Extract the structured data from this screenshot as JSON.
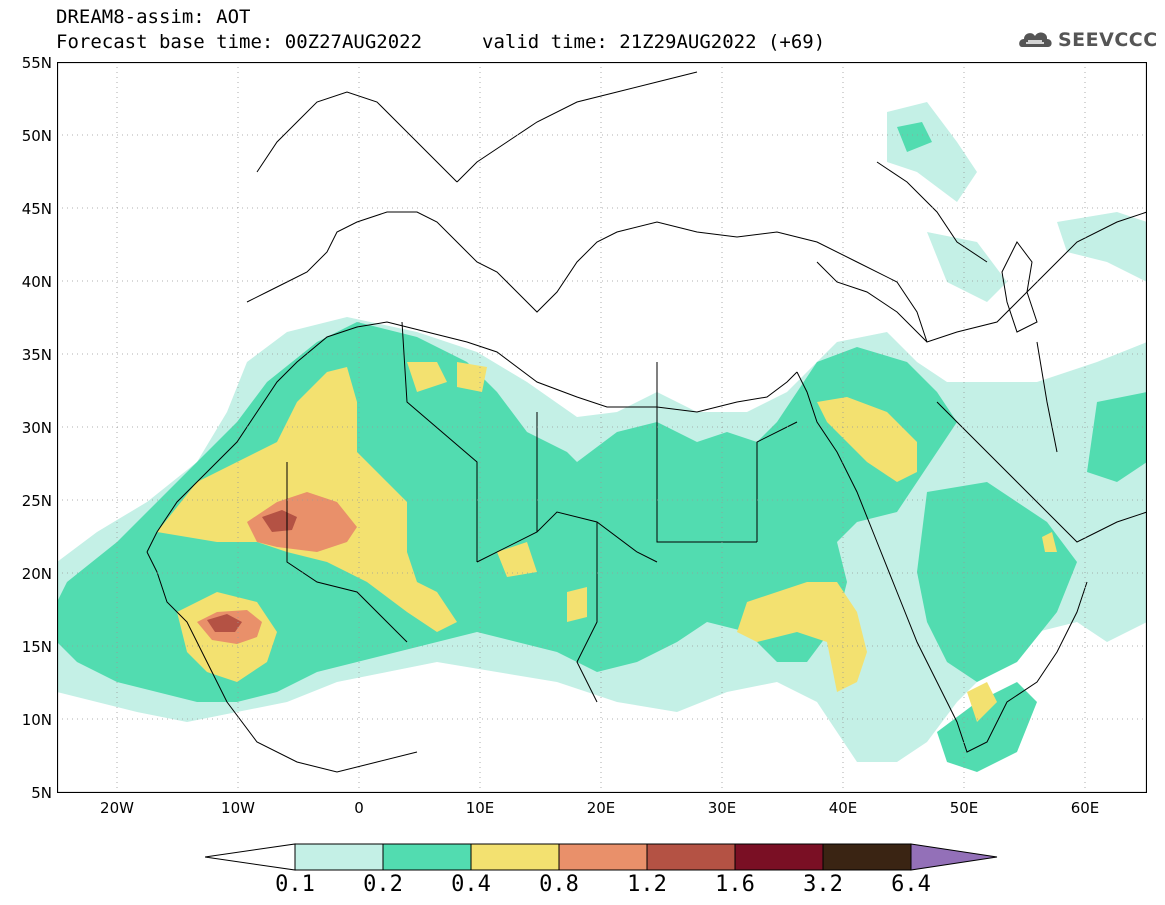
{
  "header": {
    "title": "DREAM8-assim: AOT",
    "base_time": "Forecast base time: 00Z27AUG2022",
    "valid_time": "valid time: 21Z29AUG2022 (+69)",
    "logo_text": "SEEVCCC"
  },
  "map": {
    "lat_labels": [
      "55N",
      "50N",
      "45N",
      "40N",
      "35N",
      "30N",
      "25N",
      "20N",
      "15N",
      "10N",
      "5N"
    ],
    "lon_labels": [
      "20W",
      "10W",
      "0",
      "10E",
      "20E",
      "30E",
      "40E",
      "50E",
      "60E"
    ],
    "lon_range": [
      -25,
      65
    ],
    "lat_range": [
      5,
      55
    ]
  },
  "colorbar": {
    "labels": [
      "0.1",
      "0.2",
      "0.4",
      "0.8",
      "1.2",
      "1.6",
      "3.2",
      "6.4"
    ],
    "colors": [
      "#ffffff",
      "#c4f0e6",
      "#52dcb0",
      "#f3e170",
      "#e9906a",
      "#b45244",
      "#7a0f24",
      "#3a2413",
      "#9370b8"
    ]
  },
  "colors": {
    "aot_0_1": "#c4f0e6",
    "aot_0_2": "#52dcb0",
    "aot_0_4": "#f3e170",
    "aot_0_8": "#e9906a",
    "aot_1_2": "#b45244",
    "aot_1_6": "#7a0f24"
  }
}
